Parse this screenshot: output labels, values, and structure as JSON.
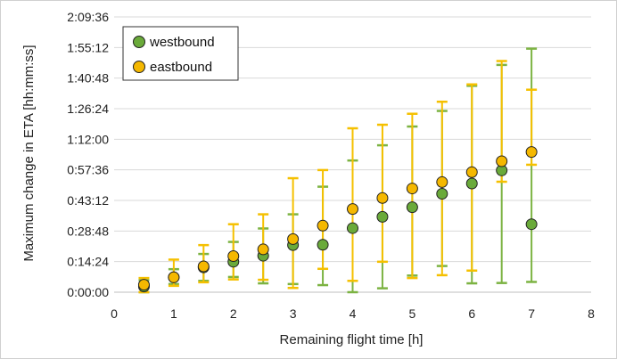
{
  "chart_data": {
    "type": "scatter",
    "xlabel": "Remaining flight time [h]",
    "ylabel": "Maximum change in ETA [hh:mm:ss]",
    "xlim": [
      0,
      8
    ],
    "ylim": [
      0,
      7776
    ],
    "x_ticks": [
      0,
      1,
      2,
      3,
      4,
      5,
      6,
      7,
      8
    ],
    "y_ticks": [
      0,
      864,
      1728,
      2592,
      3456,
      4320,
      5184,
      6048,
      6912,
      7776
    ],
    "y_tick_labels": [
      "0:00:00",
      "0:14:24",
      "0:28:48",
      "0:43:12",
      "0:57:36",
      "1:12:00",
      "1:26:24",
      "1:40:48",
      "1:55:12",
      "2:09:36"
    ],
    "grid": "horizontal",
    "legend_position": "top-left",
    "series": [
      {
        "name": "westbound",
        "marker_color": "#6aaa3a",
        "bar_color": "#7cb342",
        "points": [
          {
            "x": 0.5,
            "y": 160,
            "low": 0,
            "high": 340
          },
          {
            "x": 1,
            "y": 420,
            "low": 230,
            "high": 650
          },
          {
            "x": 1.5,
            "y": 700,
            "low": 320,
            "high": 1080
          },
          {
            "x": 2,
            "y": 860,
            "low": 430,
            "high": 1420
          },
          {
            "x": 2.5,
            "y": 1030,
            "low": 250,
            "high": 1800
          },
          {
            "x": 3,
            "y": 1330,
            "low": 230,
            "high": 2200
          },
          {
            "x": 3.5,
            "y": 1340,
            "low": 200,
            "high": 2980
          },
          {
            "x": 4,
            "y": 1810,
            "low": 0,
            "high": 3720
          },
          {
            "x": 4.5,
            "y": 2130,
            "low": 110,
            "high": 4150
          },
          {
            "x": 5,
            "y": 2400,
            "low": 470,
            "high": 4680
          },
          {
            "x": 5.5,
            "y": 2780,
            "low": 740,
            "high": 5120
          },
          {
            "x": 6,
            "y": 3070,
            "low": 250,
            "high": 5830
          },
          {
            "x": 6.5,
            "y": 3440,
            "low": 260,
            "high": 6420
          },
          {
            "x": 7,
            "y": 1920,
            "low": 290,
            "high": 6880
          }
        ]
      },
      {
        "name": "eastbound",
        "marker_color": "#f5b800",
        "bar_color": "#f5c000",
        "points": [
          {
            "x": 0.5,
            "y": 210,
            "low": 0,
            "high": 400
          },
          {
            "x": 1,
            "y": 420,
            "low": 180,
            "high": 920
          },
          {
            "x": 1.5,
            "y": 730,
            "low": 280,
            "high": 1330
          },
          {
            "x": 2,
            "y": 1020,
            "low": 360,
            "high": 1920
          },
          {
            "x": 2.5,
            "y": 1210,
            "low": 350,
            "high": 2200
          },
          {
            "x": 3,
            "y": 1500,
            "low": 120,
            "high": 3220
          },
          {
            "x": 3.5,
            "y": 1880,
            "low": 660,
            "high": 3450
          },
          {
            "x": 4,
            "y": 2350,
            "low": 320,
            "high": 4630
          },
          {
            "x": 4.5,
            "y": 2660,
            "low": 860,
            "high": 4730
          },
          {
            "x": 5,
            "y": 2930,
            "low": 400,
            "high": 5040
          },
          {
            "x": 5.5,
            "y": 3110,
            "low": 480,
            "high": 5380
          },
          {
            "x": 6,
            "y": 3390,
            "low": 610,
            "high": 5870
          },
          {
            "x": 6.5,
            "y": 3700,
            "low": 3120,
            "high": 6530
          },
          {
            "x": 7,
            "y": 3960,
            "low": 3600,
            "high": 5720
          }
        ]
      }
    ]
  }
}
